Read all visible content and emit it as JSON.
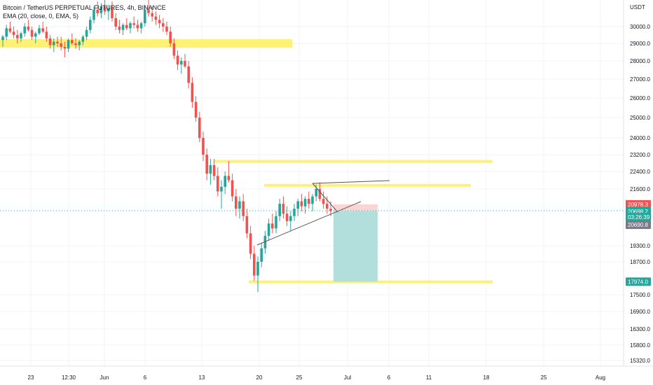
{
  "legend": {
    "title": "Bitcoin / TetherUS PERPETUAL FUTURES, 4h, BINANCE",
    "indicator": "EMA (20, close, 0, EMA, 5)"
  },
  "colors": {
    "up": "#26a69a",
    "down": "#ef5350",
    "zone": "#fff176",
    "grid": "#f0f3fa",
    "axis_text": "#131722",
    "tp_fill": "#b2dfdb",
    "sl_fill": "#fcd4d4",
    "price_line": "#26a69a"
  },
  "chart_data": {
    "type": "candlestick",
    "currency": "USDT",
    "y_ticks": [
      30000.0,
      29000.0,
      28000.0,
      27000.0,
      26000.0,
      25000.0,
      24000.0,
      23200.0,
      22400.0,
      21600.0,
      19300.0,
      18700.0,
      17500.0,
      16900.0,
      16300.0,
      15800.0,
      15320.0
    ],
    "y_tick_labels": [
      "30000.0",
      "29000.0",
      "28000.0",
      "27000.0",
      "26000.0",
      "25000.0",
      "24000.0",
      "23200.0",
      "22400.0",
      "21600.0",
      "19300.0",
      "18700.0",
      "17500.0",
      "16900.0",
      "16300.0",
      "15800.0",
      "15320.0"
    ],
    "x_ticks": [
      "23",
      "12:30",
      "Jun",
      "6",
      "13",
      "20",
      "25",
      "Jul",
      "6",
      "11",
      "18",
      "25",
      "Aug"
    ],
    "price_labels": [
      {
        "text": "20978.3",
        "price": 20978.3,
        "color": "#ef5350"
      },
      {
        "text": "20698.2",
        "price": 20698.2,
        "color": "#26a69a"
      },
      {
        "text": "03:26:39",
        "price": 20460,
        "color": "#26a69a"
      },
      {
        "text": "20690.8",
        "price": 20150,
        "color": "#787b86"
      },
      {
        "text": "17974.0",
        "price": 17974.0,
        "color": "#26a69a"
      }
    ],
    "current_price": 20698.2,
    "zones": [
      {
        "from_x": 0,
        "to_x": 417,
        "top": 29250,
        "bottom": 28750
      },
      {
        "from_x": 305,
        "to_x": 703,
        "top": 22950,
        "bottom": 22850
      },
      {
        "from_x": 377,
        "to_x": 672,
        "top": 21830,
        "bottom": 21710
      },
      {
        "from_x": 355,
        "to_x": 703,
        "top": 18020,
        "bottom": 17920
      }
    ],
    "position": {
      "entry": 20698.2,
      "stop": 20978.3,
      "target": 17974.0
    },
    "candles": [
      [
        29200,
        29500,
        28800,
        29400
      ],
      [
        29400,
        30100,
        29200,
        29900
      ],
      [
        29900,
        30300,
        29600,
        29700
      ],
      [
        29700,
        30000,
        29300,
        29500
      ],
      [
        29500,
        29800,
        29000,
        29300
      ],
      [
        29300,
        29700,
        29100,
        29600
      ],
      [
        29600,
        30200,
        29400,
        30000
      ],
      [
        30000,
        30400,
        29700,
        29800
      ],
      [
        29800,
        30000,
        29200,
        29400
      ],
      [
        29400,
        29700,
        29000,
        29600
      ],
      [
        29600,
        30100,
        29500,
        29900
      ],
      [
        29900,
        30300,
        29600,
        29700
      ],
      [
        29700,
        30000,
        29100,
        29300
      ],
      [
        29300,
        29500,
        28700,
        28900
      ],
      [
        28900,
        29300,
        28500,
        29100
      ],
      [
        29100,
        29400,
        28800,
        29000
      ],
      [
        29000,
        29400,
        28600,
        28800
      ],
      [
        28800,
        29100,
        28200,
        28700
      ],
      [
        28700,
        29300,
        28500,
        29200
      ],
      [
        29200,
        29600,
        28900,
        29000
      ],
      [
        29000,
        29300,
        28700,
        28900
      ],
      [
        28900,
        29200,
        28600,
        29100
      ],
      [
        29100,
        29500,
        28900,
        29400
      ],
      [
        29400,
        30000,
        29200,
        29800
      ],
      [
        29800,
        30600,
        29600,
        30400
      ],
      [
        30400,
        31200,
        30200,
        31000
      ],
      [
        31000,
        31500,
        30600,
        30800
      ],
      [
        30800,
        31400,
        30500,
        31200
      ],
      [
        31200,
        31600,
        30700,
        30900
      ],
      [
        30900,
        31300,
        30400,
        31100
      ],
      [
        31100,
        31500,
        30300,
        30500
      ],
      [
        30500,
        30800,
        29800,
        30000
      ],
      [
        30000,
        30400,
        29600,
        29800
      ],
      [
        29800,
        30200,
        29500,
        30100
      ],
      [
        30100,
        30500,
        29800,
        29900
      ],
      [
        29900,
        30300,
        29600,
        30200
      ],
      [
        30200,
        30600,
        29900,
        30100
      ],
      [
        30100,
        30400,
        29700,
        29900
      ],
      [
        29900,
        30300,
        29600,
        30200
      ],
      [
        30200,
        31300,
        30000,
        31000
      ],
      [
        31000,
        31700,
        30600,
        30800
      ],
      [
        30800,
        31200,
        30300,
        30600
      ],
      [
        30600,
        30900,
        30100,
        30400
      ],
      [
        30400,
        30700,
        29900,
        30200
      ],
      [
        30200,
        30500,
        29700,
        30000
      ],
      [
        30000,
        30300,
        29500,
        29700
      ],
      [
        29700,
        30000,
        28800,
        29000
      ],
      [
        29000,
        29300,
        28100,
        28300
      ],
      [
        28300,
        28600,
        27500,
        27800
      ],
      [
        27800,
        28200,
        27300,
        28000
      ],
      [
        28000,
        28400,
        27600,
        27700
      ],
      [
        27700,
        28000,
        26500,
        26800
      ],
      [
        26800,
        27100,
        25500,
        25800
      ],
      [
        25800,
        26100,
        24800,
        25000
      ],
      [
        25000,
        25300,
        23800,
        24000
      ],
      [
        24000,
        24300,
        22900,
        23200
      ],
      [
        23200,
        23500,
        22000,
        22300
      ],
      [
        22300,
        23000,
        21800,
        22700
      ],
      [
        22700,
        23000,
        22000,
        22200
      ],
      [
        22200,
        22600,
        21300,
        21500
      ],
      [
        21500,
        22000,
        20800,
        21700
      ],
      [
        21700,
        22400,
        21400,
        22200
      ],
      [
        22200,
        22900,
        21900,
        22000
      ],
      [
        22000,
        22300,
        21100,
        21300
      ],
      [
        21300,
        21600,
        20500,
        20800
      ],
      [
        20800,
        21300,
        20400,
        21100
      ],
      [
        21100,
        21400,
        20300,
        20500
      ],
      [
        20500,
        20800,
        19600,
        19800
      ],
      [
        19800,
        20100,
        18800,
        19000
      ],
      [
        19000,
        19300,
        18000,
        18200
      ],
      [
        18200,
        18900,
        17600,
        18700
      ],
      [
        18700,
        19400,
        18500,
        19200
      ],
      [
        19200,
        19900,
        19000,
        19700
      ],
      [
        19700,
        20400,
        19500,
        20200
      ],
      [
        20200,
        20600,
        19800,
        20000
      ],
      [
        20000,
        20700,
        19800,
        20500
      ],
      [
        20500,
        21200,
        20300,
        21000
      ],
      [
        21000,
        21300,
        20400,
        20600
      ],
      [
        20600,
        20900,
        20100,
        20300
      ],
      [
        20300,
        20700,
        19900,
        20500
      ],
      [
        20500,
        21000,
        20300,
        20800
      ],
      [
        20800,
        21200,
        20500,
        21100
      ],
      [
        21100,
        21400,
        20700,
        20900
      ],
      [
        20900,
        21300,
        20600,
        21200
      ],
      [
        21200,
        21500,
        20800,
        21000
      ],
      [
        21000,
        21400,
        20700,
        21300
      ],
      [
        21300,
        21800,
        21100,
        21600
      ],
      [
        21600,
        21900,
        21100,
        21200
      ],
      [
        21200,
        21500,
        20800,
        21000
      ],
      [
        21000,
        21300,
        20600,
        20800
      ],
      [
        20800,
        21100,
        20500,
        20700
      ]
    ]
  },
  "axis": {
    "currency_label": "USDT"
  }
}
